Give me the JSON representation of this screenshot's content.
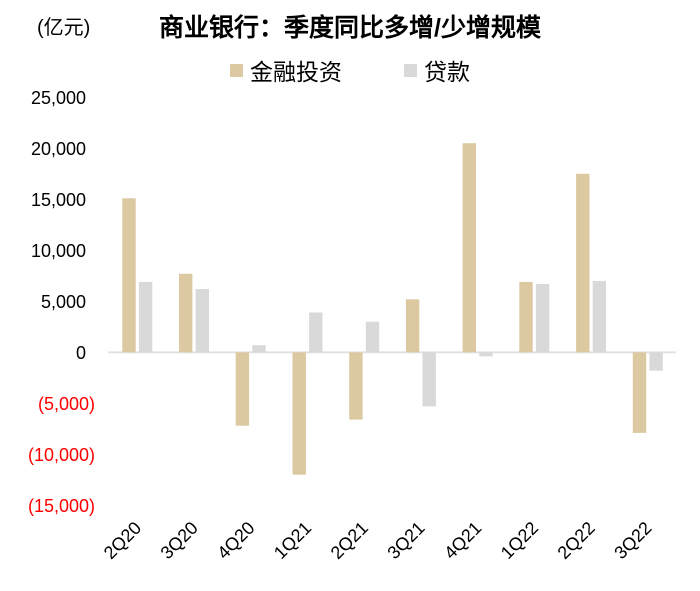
{
  "header": {
    "unit_label": "(亿元)"
  },
  "chart_data": {
    "type": "bar",
    "title": "商业银行：季度同比多增/少增规模",
    "unit_label": "(亿元)",
    "categories": [
      "2Q20",
      "3Q20",
      "4Q20",
      "1Q21",
      "2Q21",
      "3Q21",
      "4Q21",
      "1Q22",
      "2Q22",
      "3Q22"
    ],
    "series": [
      {
        "name": "金融投资",
        "color": "#dcc9a2",
        "values": [
          15100,
          7700,
          -7200,
          -12000,
          -6600,
          5200,
          20500,
          6900,
          17500,
          -7900
        ]
      },
      {
        "name": "贷款",
        "color": "#d9d9d9",
        "values": [
          6900,
          6200,
          700,
          3900,
          3000,
          -5300,
          -400,
          6700,
          7000,
          -1800
        ]
      }
    ],
    "ylim": [
      -15000,
      25000
    ],
    "ytick_step": 5000,
    "yticks": [
      {
        "label": "25,000",
        "value": 25000
      },
      {
        "label": "20,000",
        "value": 20000
      },
      {
        "label": "15,000",
        "value": 15000
      },
      {
        "label": "10,000",
        "value": 10000
      },
      {
        "label": "5,000",
        "value": 5000
      },
      {
        "label": "0",
        "value": 0
      },
      {
        "label": "(5,000)",
        "value": -5000
      },
      {
        "label": "(10,000)",
        "value": -10000
      },
      {
        "label": "(15,000)",
        "value": -15000
      }
    ],
    "negative_tick_color": "#ff0000",
    "positive_tick_color": "#000000",
    "axis_line_color": "#e0e0e0",
    "grid": false,
    "legend_position": "top",
    "xlabel": "",
    "ylabel": "亿元"
  }
}
